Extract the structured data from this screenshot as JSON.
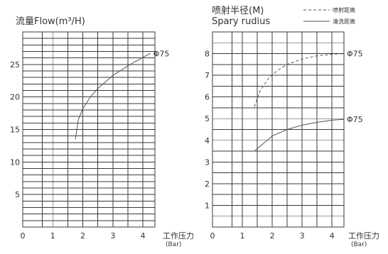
{
  "chart_data": [
    {
      "type": "line",
      "title": "流量Flow(m³/H)",
      "xlabel": "工作压力",
      "xlabel_unit": "(Bar)",
      "xlim": [
        0,
        4.4
      ],
      "ylim": [
        0,
        30
      ],
      "x_ticks": [
        0,
        1,
        2,
        3,
        4
      ],
      "y_ticks": [
        5,
        10,
        15,
        20,
        25
      ],
      "grid": true,
      "series": [
        {
          "end_label": "Φ75",
          "dash": false,
          "x": [
            1.75,
            1.85,
            2.0,
            2.25,
            2.5,
            3.0,
            3.5,
            4.0,
            4.25
          ],
          "y": [
            13.5,
            16.5,
            18.2,
            20.0,
            21.3,
            23.3,
            24.8,
            26.1,
            26.7
          ]
        }
      ]
    },
    {
      "type": "line",
      "title": "喷射半径(M)",
      "subtitle": "Spary rudius",
      "xlabel": "工作压力",
      "xlabel_unit": "(Bar)",
      "xlim": [
        0,
        4.4
      ],
      "ylim": [
        0,
        9
      ],
      "x_ticks": [
        0,
        1,
        2,
        3,
        4
      ],
      "y_ticks": [
        1,
        2,
        3,
        4,
        5,
        6,
        7,
        8
      ],
      "grid": true,
      "legend": [
        "喷射距离",
        "清洗距离"
      ],
      "legend_position": "top-right",
      "series": [
        {
          "name": "喷射距离",
          "end_label": "Φ75",
          "dash": true,
          "x": [
            1.4,
            1.6,
            1.9,
            2.2,
            2.5,
            3.0,
            3.5,
            4.0,
            4.4
          ],
          "y": [
            5.55,
            6.3,
            6.9,
            7.25,
            7.5,
            7.75,
            7.9,
            7.97,
            8.0
          ]
        },
        {
          "name": "清洗距离",
          "end_label": "Φ75",
          "dash": false,
          "x": [
            1.4,
            1.7,
            2.0,
            2.5,
            3.0,
            3.5,
            4.0,
            4.4
          ],
          "y": [
            3.5,
            3.85,
            4.2,
            4.5,
            4.7,
            4.83,
            4.93,
            4.97
          ]
        }
      ]
    }
  ]
}
